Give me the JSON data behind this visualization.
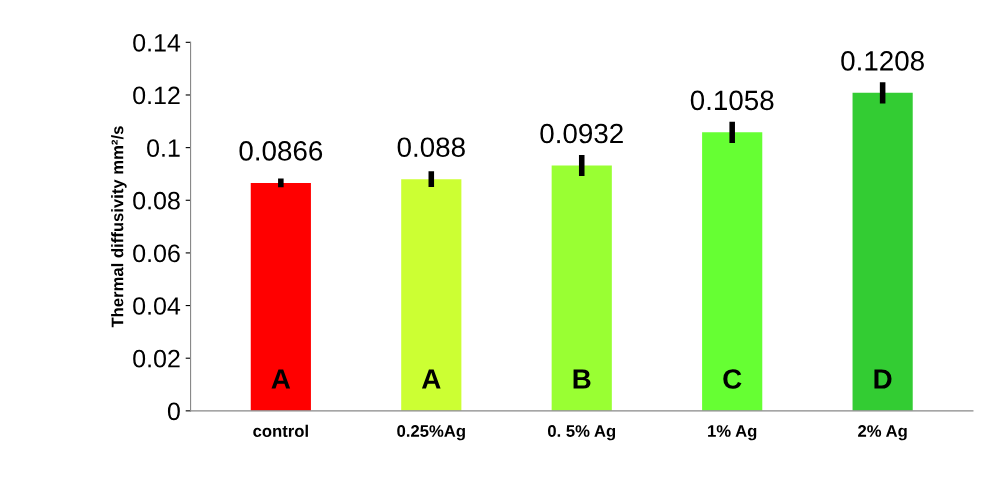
{
  "chart_data": {
    "type": "bar",
    "ylabel": "Thermal diffusivity mm²/s",
    "categories": [
      "control",
      "0.25%Ag",
      "0. 5% Ag",
      "1% Ag",
      "2% Ag"
    ],
    "values": [
      0.0866,
      0.088,
      0.0932,
      0.1058,
      0.1208
    ],
    "colors": [
      "#ff0000",
      "#ccff33",
      "#99ff33",
      "#66ff33",
      "#33cc33"
    ],
    "errors": [
      0.0017,
      0.003,
      0.004,
      0.004,
      0.004
    ],
    "data_labels": true,
    "annotations": [
      "A",
      "A",
      "B",
      "C",
      "D"
    ],
    "ylim": [
      0,
      0.14
    ],
    "yticks": [
      0,
      0.02,
      0.04,
      0.06,
      0.08,
      0.1,
      0.12,
      0.14
    ],
    "grid": false,
    "legend": false
  }
}
